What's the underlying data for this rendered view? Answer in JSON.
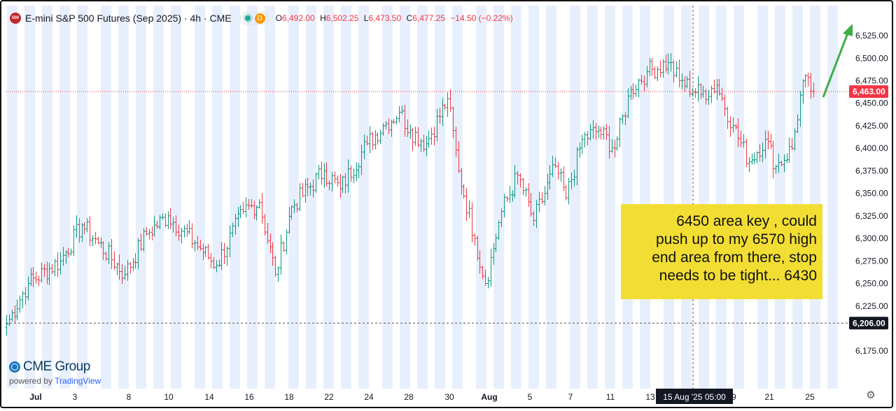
{
  "header": {
    "symbol_badge": "500",
    "title": "E-mini S&P 500 Futures (Sep 2025) · 4h · CME",
    "badge_d": "D",
    "ohlc": {
      "o_label": "O",
      "o_value": "6,492.00",
      "h_label": "H",
      "h_value": "6,502.25",
      "l_label": "L",
      "l_value": "6,473.50",
      "c_label": "C",
      "c_value": "6,477.25",
      "change": "−14.50 (−0.22%)"
    }
  },
  "annotation": {
    "lines": [
      "6450 area key , could",
      "push up to my 6570 high",
      "end area from there, stop",
      "needs to be tight... 6430"
    ]
  },
  "branding": {
    "name": "CME Group",
    "powered": "powered by",
    "tradingview": "TradingView"
  },
  "colors": {
    "up": "#089981",
    "down": "#f23645",
    "session": "#e8effc",
    "arrow": "#3cb043",
    "annotation_bg": "#f2de33"
  },
  "icons": [
    "globe-icon",
    "green-dot-icon",
    "settings-icon"
  ],
  "chart_data": {
    "type": "ohlc",
    "title": "E-mini S&P 500 Futures (Sep 2025) · 4h · CME",
    "xlabel": "",
    "ylabel": "",
    "ylim": [
      6160,
      6540
    ],
    "y_ticks": [
      "6,525.00",
      "6,500.00",
      "6,475.00",
      "6,450.00",
      "6,425.00",
      "6,400.00",
      "6,375.00",
      "6,350.00",
      "6,325.00",
      "6,300.00",
      "6,275.00",
      "6,250.00",
      "6,225.00",
      "6,175.00"
    ],
    "x_ticks": [
      "Jul",
      "3",
      "8",
      "10",
      "14",
      "16",
      "18",
      "22",
      "24",
      "28",
      "30",
      "Aug",
      "5",
      "7",
      "11",
      "13",
      "19",
      "21",
      "25"
    ],
    "price_labels": [
      {
        "text": "6,463.00",
        "value": 6463,
        "style": "red"
      },
      {
        "text": "6,206.00",
        "value": 6206,
        "style": "dark"
      }
    ],
    "crosshair": {
      "x_label": "15 Aug '25   05:00"
    },
    "anchors": [
      {
        "bar": 0,
        "close": 6205
      },
      {
        "bar": 8,
        "close": 6250
      },
      {
        "bar": 20,
        "close": 6275
      },
      {
        "bar": 28,
        "close": 6315
      },
      {
        "bar": 34,
        "close": 6295
      },
      {
        "bar": 44,
        "close": 6260
      },
      {
        "bar": 52,
        "close": 6305
      },
      {
        "bar": 60,
        "close": 6325
      },
      {
        "bar": 70,
        "close": 6295
      },
      {
        "bar": 78,
        "close": 6270
      },
      {
        "bar": 88,
        "close": 6330
      },
      {
        "bar": 94,
        "close": 6340
      },
      {
        "bar": 100,
        "close": 6260
      },
      {
        "bar": 106,
        "close": 6335
      },
      {
        "bar": 118,
        "close": 6375
      },
      {
        "bar": 124,
        "close": 6355
      },
      {
        "bar": 134,
        "close": 6405
      },
      {
        "bar": 140,
        "close": 6425
      },
      {
        "bar": 146,
        "close": 6440
      },
      {
        "bar": 150,
        "close": 6420
      },
      {
        "bar": 156,
        "close": 6405
      },
      {
        "bar": 164,
        "close": 6455
      },
      {
        "bar": 168,
        "close": 6375
      },
      {
        "bar": 174,
        "close": 6300
      },
      {
        "bar": 178,
        "close": 6250
      },
      {
        "bar": 184,
        "close": 6330
      },
      {
        "bar": 190,
        "close": 6370
      },
      {
        "bar": 196,
        "close": 6320
      },
      {
        "bar": 204,
        "close": 6380
      },
      {
        "bar": 208,
        "close": 6345
      },
      {
        "bar": 214,
        "close": 6410
      },
      {
        "bar": 220,
        "close": 6420
      },
      {
        "bar": 226,
        "close": 6400
      },
      {
        "bar": 232,
        "close": 6465
      },
      {
        "bar": 238,
        "close": 6485
      },
      {
        "bar": 246,
        "close": 6495
      },
      {
        "bar": 250,
        "close": 6475
      },
      {
        "bar": 258,
        "close": 6460
      },
      {
        "bar": 264,
        "close": 6470
      },
      {
        "bar": 270,
        "close": 6425
      },
      {
        "bar": 276,
        "close": 6385
      },
      {
        "bar": 282,
        "close": 6410
      },
      {
        "bar": 286,
        "close": 6380
      },
      {
        "bar": 292,
        "close": 6400
      },
      {
        "bar": 296,
        "close": 6475
      },
      {
        "bar": 300,
        "close": 6463
      }
    ]
  }
}
